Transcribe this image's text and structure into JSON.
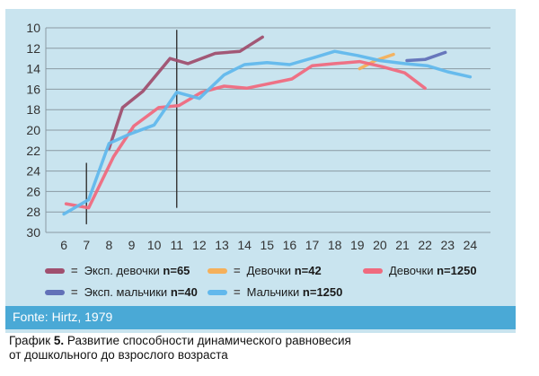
{
  "chart_data": {
    "type": "line",
    "x": [
      6,
      7,
      8,
      9,
      10,
      11,
      12,
      13,
      14,
      15,
      16,
      17,
      18,
      19,
      20,
      21,
      22,
      23,
      24
    ],
    "xticks": [
      "6",
      "7",
      "8",
      "9",
      "10",
      "11",
      "12",
      "13",
      "14",
      "15",
      "16",
      "17",
      "18",
      "19",
      "20",
      "21",
      "22",
      "23",
      "24"
    ],
    "yticks": [
      "10",
      "12",
      "14",
      "16",
      "18",
      "20",
      "22",
      "24",
      "26",
      "28",
      "30"
    ],
    "ylim": [
      10,
      30
    ],
    "y_inverted": true,
    "grid": true,
    "legend_position": "bottom",
    "vlines": [
      {
        "x": 7,
        "y_from": 23.2,
        "y_to": 29.2
      },
      {
        "x": 11,
        "y_from": 10.2,
        "y_to": 27.6
      }
    ],
    "series": [
      {
        "label": "Эксп. девочки",
        "n_label": "n=65",
        "color": "#a0506f",
        "points": [
          [
            8,
            21.8
          ],
          [
            8.6,
            17.8
          ],
          [
            9.5,
            16.2
          ],
          [
            10.7,
            13.0
          ],
          [
            11.5,
            13.5
          ],
          [
            12.7,
            12.5
          ],
          [
            13.8,
            12.3
          ],
          [
            14.8,
            10.9
          ]
        ]
      },
      {
        "label": "Девочки",
        "n_label": "n=42",
        "color": "#f5b05a",
        "points": [
          [
            19.1,
            14.0
          ],
          [
            19.8,
            13.2
          ],
          [
            20.6,
            12.6
          ]
        ]
      },
      {
        "label": "Девочки",
        "n_label": "n=1250",
        "color": "#f06a7e",
        "points": [
          [
            6.1,
            27.2
          ],
          [
            7.1,
            27.6
          ],
          [
            8.2,
            22.6
          ],
          [
            9.1,
            19.6
          ],
          [
            10.2,
            17.8
          ],
          [
            11.1,
            17.6
          ],
          [
            12.1,
            16.3
          ],
          [
            13.1,
            15.7
          ],
          [
            14.1,
            15.9
          ],
          [
            15.0,
            15.5
          ],
          [
            16.1,
            15.0
          ],
          [
            17.0,
            13.7
          ],
          [
            18.0,
            13.5
          ],
          [
            19.1,
            13.3
          ],
          [
            20.1,
            13.8
          ],
          [
            21.1,
            14.4
          ],
          [
            22.0,
            15.9
          ]
        ]
      },
      {
        "label": "Эксп. мальчики",
        "n_label": "n=40",
        "color": "#6271b8",
        "points": [
          [
            21.2,
            13.2
          ],
          [
            22.0,
            13.1
          ],
          [
            22.9,
            12.4
          ]
        ]
      },
      {
        "label": "Мальчики",
        "n_label": "n=1250",
        "color": "#62b8ec",
        "points": [
          [
            6.0,
            28.2
          ],
          [
            7.1,
            26.8
          ],
          [
            8.0,
            21.3
          ],
          [
            8.9,
            20.4
          ],
          [
            10.0,
            19.5
          ],
          [
            11.0,
            16.3
          ],
          [
            12.0,
            16.9
          ],
          [
            13.1,
            14.6
          ],
          [
            14.0,
            13.6
          ],
          [
            15.0,
            13.4
          ],
          [
            16.0,
            13.6
          ],
          [
            17.1,
            12.9
          ],
          [
            18.0,
            12.3
          ],
          [
            19.0,
            12.7
          ],
          [
            20.0,
            13.2
          ],
          [
            21.1,
            13.5
          ],
          [
            22.1,
            13.7
          ],
          [
            23.0,
            14.3
          ],
          [
            24.0,
            14.8
          ]
        ]
      }
    ]
  },
  "source": "Fonte: Hirtz, 1979",
  "caption": {
    "label": "График",
    "number": "5.",
    "line1": "Развитие способности динамического равновесия",
    "line2": "от дошкольного до взрослого возраста"
  },
  "equals_sign": "="
}
